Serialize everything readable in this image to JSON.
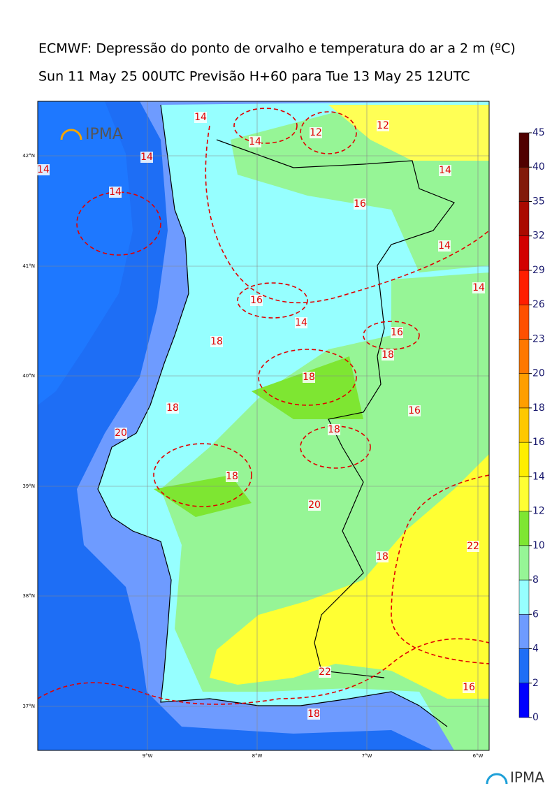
{
  "header": {
    "title": "ECMWF: Depressão do ponto de orvalho e temperatura do ar a 2 m (ºC)",
    "subtitle": "Sun 11 May 25 00UTC Previsão H+60 para Tue 13 May 25 12UTC"
  },
  "logo": {
    "map_text": "IPMA",
    "footer_text": "IPMA"
  },
  "grid": {
    "latitudes": [
      "42°N",
      "41°N",
      "40°N",
      "39°N",
      "38°N",
      "37°N"
    ],
    "longitudes": [
      "9°W",
      "8°W",
      "7°W",
      "6°W"
    ]
  },
  "colorbar": {
    "ticks": [
      0,
      2,
      4,
      6,
      8,
      10,
      12,
      14,
      16,
      18,
      20,
      23,
      26,
      29,
      32,
      35,
      40,
      45
    ],
    "colors": [
      "#0000ff",
      "#1e6ef5",
      "#6e9bff",
      "#96ffff",
      "#96f596",
      "#7ee632",
      "#ffff33",
      "#ffee00",
      "#ffc800",
      "#ff9e00",
      "#ff7800",
      "#ff5000",
      "#ff1e00",
      "#d20000",
      "#aa0a00",
      "#821a0a",
      "#500000"
    ]
  },
  "contour_labels": [
    14,
    14,
    14,
    14,
    12,
    12,
    14,
    16,
    14,
    14,
    16,
    14,
    14,
    16,
    18,
    18,
    18,
    18,
    16,
    20,
    18,
    18,
    20,
    18,
    22,
    22,
    16,
    18
  ]
}
